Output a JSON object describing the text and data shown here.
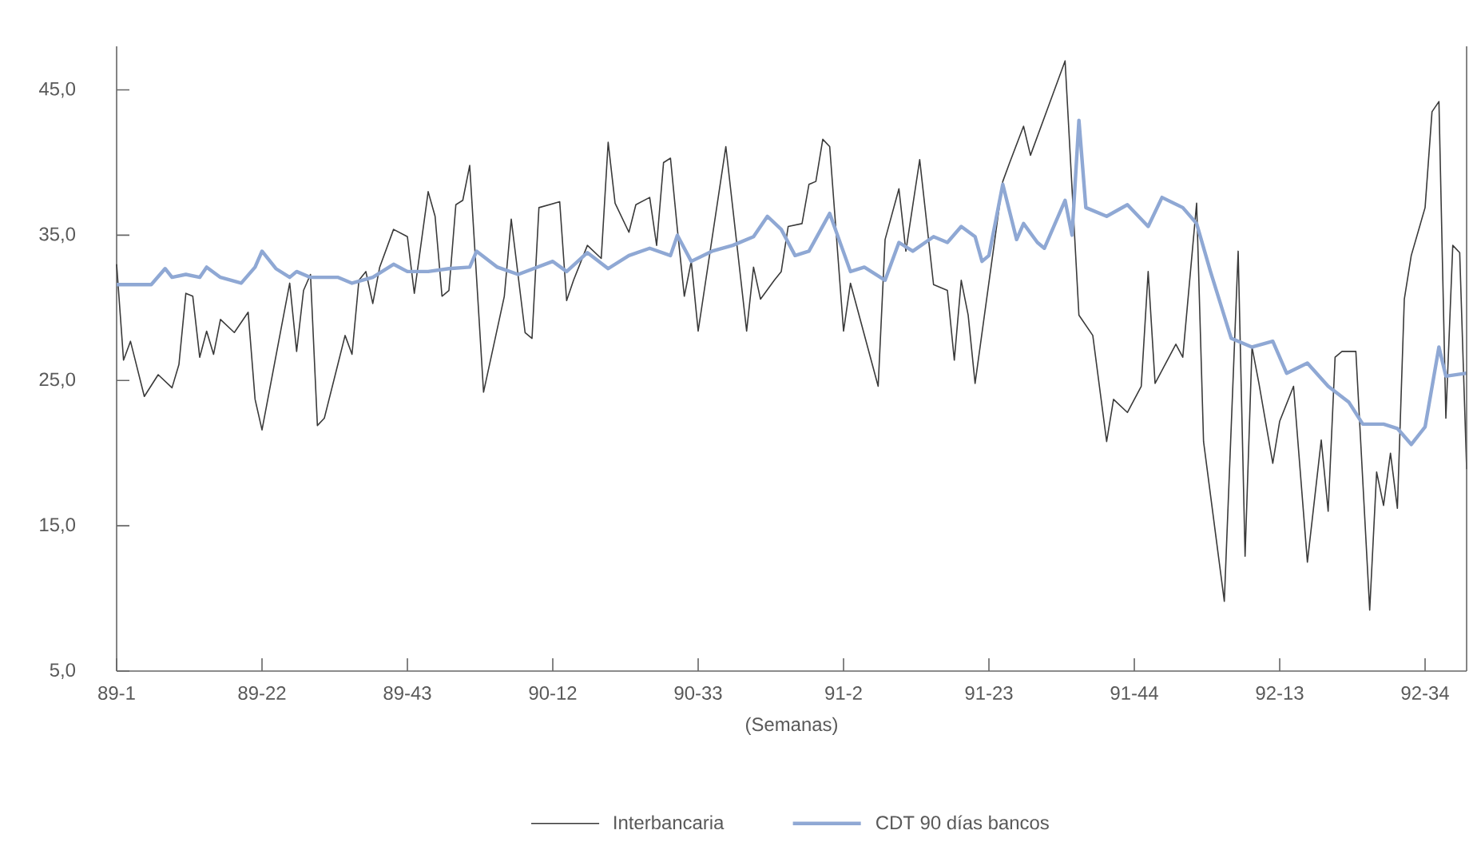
{
  "chart_data": {
    "type": "line",
    "xlabel": "(Semanas)",
    "ylim": [
      5,
      48
    ],
    "categories": [
      "89-1",
      null,
      null,
      null,
      null,
      null,
      null,
      null,
      null,
      null,
      null,
      null,
      null,
      null,
      null,
      null,
      null,
      null,
      null,
      null,
      null,
      "89-22",
      null,
      null,
      null,
      null,
      null,
      null,
      null,
      null,
      null,
      null,
      null,
      null,
      null,
      null,
      null,
      null,
      null,
      null,
      null,
      null,
      "89-43",
      null,
      null,
      null,
      null,
      null,
      null,
      null,
      null,
      null,
      null,
      null,
      null,
      null,
      null,
      null,
      null,
      null,
      null,
      null,
      null,
      "90-12",
      null,
      null,
      null,
      null,
      null,
      null,
      null,
      null,
      null,
      null,
      null,
      null,
      null,
      null,
      null,
      null,
      null,
      null,
      null,
      null,
      "90-33",
      null,
      null,
      null,
      null,
      null,
      null,
      null,
      null,
      null,
      null,
      null,
      null,
      null,
      null,
      null,
      null,
      null,
      null,
      null,
      null,
      "91-2",
      null,
      null,
      null,
      null,
      null,
      null,
      null,
      null,
      null,
      null,
      null,
      null,
      null,
      null,
      null,
      null,
      null,
      null,
      null,
      null,
      "91-23",
      null,
      null,
      null,
      null,
      null,
      null,
      null,
      null,
      null,
      null,
      null,
      null,
      null,
      null,
      null,
      null,
      null,
      null,
      null,
      null,
      "91-44",
      null,
      null,
      null,
      null,
      null,
      null,
      null,
      null,
      null,
      null,
      null,
      null,
      null,
      null,
      null,
      null,
      null,
      null,
      null,
      null,
      "92-13",
      null,
      null,
      null,
      null,
      null,
      null,
      null,
      null,
      null,
      null,
      null,
      null,
      null,
      null,
      null,
      null,
      null,
      null,
      null,
      null,
      "92-34",
      null,
      null,
      null,
      null,
      null,
      null
    ],
    "yticks": [
      {
        "value": 5,
        "label": "5,0"
      },
      {
        "value": 15,
        "label": "15,0"
      },
      {
        "value": 25,
        "label": "25,0"
      },
      {
        "value": 35,
        "label": "35,0"
      },
      {
        "value": 45,
        "label": "45,0"
      }
    ],
    "grid": false,
    "legend": "bottom",
    "series": [
      {
        "name": "Interbancaria",
        "color": "#3a3a3a",
        "values": [
          33.0,
          26.4,
          27.7,
          null,
          23.9,
          null,
          25.4,
          null,
          24.5,
          26.1,
          31.0,
          30.8,
          26.6,
          28.4,
          26.8,
          29.2,
          null,
          28.3,
          null,
          29.7,
          23.7,
          21.6,
          null,
          null,
          null,
          31.7,
          27.0,
          31.2,
          32.3,
          21.9,
          22.4,
          null,
          26.2,
          28.1,
          26.8,
          31.9,
          32.5,
          30.3,
          32.8,
          null,
          35.4,
          null,
          34.9,
          31.0,
          null,
          38.0,
          36.3,
          30.8,
          31.2,
          37.1,
          37.4,
          39.8,
          null,
          24.2,
          null,
          null,
          30.8,
          36.1,
          null,
          28.3,
          27.9,
          36.9,
          null,
          null,
          37.3,
          30.5,
          31.9,
          null,
          34.3,
          null,
          33.4,
          41.4,
          37.2,
          null,
          35.2,
          37.1,
          null,
          37.6,
          34.3,
          40.0,
          40.3,
          35.4,
          30.8,
          33.2,
          28.4,
          null,
          null,
          null,
          41.1,
          null,
          null,
          28.4,
          32.8,
          30.6,
          null,
          31.9,
          32.5,
          35.6,
          null,
          35.8,
          38.5,
          38.7,
          41.6,
          41.1,
          null,
          28.4,
          31.7,
          null,
          null,
          null,
          24.6,
          34.7,
          null,
          38.2,
          33.9,
          null,
          40.2,
          null,
          31.6,
          null,
          31.2,
          26.4,
          31.9,
          29.5,
          24.8,
          null,
          null,
          null,
          38.7,
          40.0,
          null,
          42.5,
          40.5,
          null,
          null,
          44.4,
          null,
          47.0,
          null,
          29.5,
          null,
          28.1,
          null,
          20.8,
          23.7,
          null,
          22.8,
          null,
          24.6,
          32.5,
          24.8,
          null,
          null,
          27.5,
          26.6,
          null,
          37.2,
          20.8,
          null,
          null,
          9.8,
          null,
          33.9,
          12.9,
          27.3,
          24.8,
          null,
          19.3,
          22.2,
          null,
          24.6,
          null,
          12.5,
          null,
          20.9,
          16.0,
          26.6,
          27.0,
          null,
          27.0,
          null,
          9.2,
          18.7,
          16.4,
          20.0,
          16.2,
          30.6,
          33.6,
          null,
          36.9,
          43.5,
          44.2,
          22.4,
          34.3,
          33.8,
          18.9
        ]
      },
      {
        "name": "CDT 90 días bancos",
        "color": "#8fa8d4",
        "values": [
          31.6,
          null,
          null,
          null,
          null,
          31.6,
          null,
          32.7,
          32.1,
          null,
          32.3,
          null,
          32.1,
          32.8,
          null,
          32.1,
          null,
          null,
          31.7,
          null,
          32.8,
          33.9,
          null,
          32.7,
          null,
          32.1,
          32.5,
          null,
          32.1,
          null,
          null,
          null,
          32.1,
          null,
          31.7,
          null,
          null,
          32.1,
          null,
          null,
          33.0,
          null,
          32.5,
          null,
          null,
          32.5,
          null,
          null,
          32.7,
          null,
          null,
          32.8,
          33.9,
          null,
          null,
          32.8,
          null,
          null,
          32.3,
          null,
          null,
          null,
          null,
          33.2,
          null,
          32.5,
          null,
          null,
          33.8,
          null,
          null,
          32.7,
          null,
          null,
          33.6,
          null,
          null,
          34.1,
          null,
          null,
          33.6,
          35.0,
          null,
          33.2,
          null,
          null,
          33.9,
          null,
          null,
          34.3,
          null,
          null,
          34.9,
          null,
          36.3,
          null,
          35.4,
          null,
          33.6,
          null,
          33.9,
          null,
          null,
          36.5,
          null,
          null,
          32.5,
          null,
          32.8,
          null,
          null,
          31.9,
          null,
          34.5,
          null,
          33.9,
          null,
          null,
          34.9,
          null,
          34.5,
          null,
          35.6,
          null,
          34.9,
          33.2,
          33.6,
          null,
          38.5,
          null,
          34.7,
          35.8,
          null,
          34.5,
          34.1,
          null,
          null,
          37.4,
          35.0,
          42.9,
          36.9,
          null,
          null,
          36.3,
          null,
          null,
          37.1,
          null,
          null,
          35.6,
          null,
          37.6,
          null,
          null,
          36.9,
          null,
          35.8,
          null,
          32.5,
          null,
          null,
          27.9,
          null,
          null,
          27.3,
          null,
          null,
          27.7,
          null,
          25.5,
          null,
          null,
          26.2,
          null,
          null,
          24.6,
          null,
          null,
          23.5,
          null,
          22.0,
          null,
          null,
          22.0,
          null,
          21.7,
          null,
          20.6,
          null,
          21.8,
          null,
          27.3,
          25.3,
          null,
          null,
          25.5
        ]
      }
    ]
  }
}
